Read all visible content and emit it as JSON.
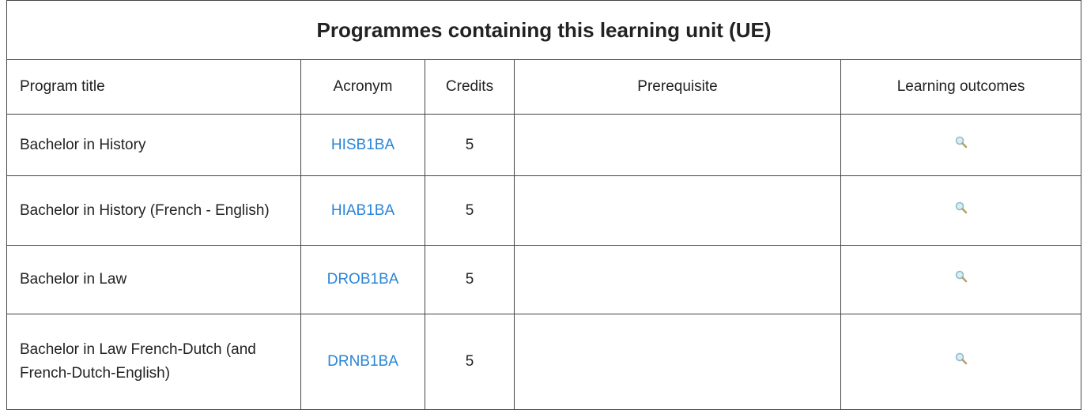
{
  "table": {
    "title": "Programmes containing this learning unit (UE)",
    "headers": [
      "Program title",
      "Acronym",
      "Credits",
      "Prerequisite",
      "Learning outcomes"
    ],
    "rows": [
      {
        "program": "Bachelor in History",
        "acronym": "HISB1BA",
        "credits": 5
      },
      {
        "program": "Bachelor in History (French - English)",
        "acronym": "HIAB1BA",
        "credits": 5
      },
      {
        "program": "Bachelor in Law",
        "acronym": "DROB1BA",
        "credits": 5
      },
      {
        "program": "Bachelor in Law French-Dutch (and French-Dutch-English)",
        "acronym": "DRNB1BA",
        "credits": 5
      }
    ]
  }
}
